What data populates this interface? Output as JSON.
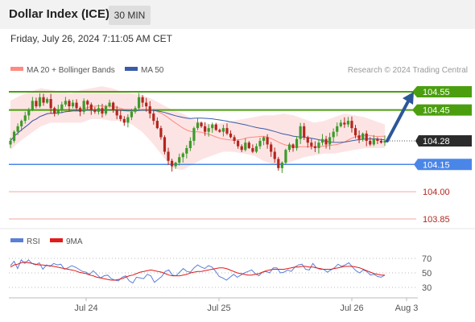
{
  "header": {
    "title": "Dollar Index (ICE)",
    "timeframe": "30 MIN",
    "timestamp": "Friday, July 26, 2024 7:11:05 AM CET"
  },
  "legend": {
    "ma20": "MA 20 + Bollinger Bands",
    "ma50": "MA 50",
    "ma20_color": "#ff8a80",
    "ma50_color": "#3a5ba8",
    "credit": "Research © 2024 Trading Central"
  },
  "colors": {
    "bull": "#3d9a2a",
    "bear": "#b3261e",
    "resistance": "#4b9f0f",
    "support": "#4a86e8",
    "target_line": "#f4a6a0",
    "target_label": "#b3261e",
    "bands_fill": "#fde4e4",
    "arrow": "#2b5797",
    "current": "#2b2b2b",
    "rsi": "#5b7fd4",
    "rsi_ma": "#e21b1b"
  },
  "chart_data": [
    {
      "type": "candlestick",
      "title": "Dollar Index (ICE)",
      "timeframe": "30 MIN",
      "ylim": [
        103.75,
        104.65
      ],
      "x_ticks": [
        "Jul 24",
        "Jul 25",
        "Jul 26",
        "Aug 3"
      ],
      "levels": [
        {
          "value": 104.55,
          "label": "104.55",
          "kind": "resistance"
        },
        {
          "value": 104.45,
          "label": "104.45",
          "kind": "resistance"
        },
        {
          "value": 104.28,
          "label": "104.28",
          "kind": "current"
        },
        {
          "value": 104.15,
          "label": "104.15",
          "kind": "support"
        },
        {
          "value": 104.0,
          "label": "104.00",
          "kind": "target"
        },
        {
          "value": 103.85,
          "label": "103.85",
          "kind": "target"
        }
      ],
      "close_series": [
        104.28,
        104.33,
        104.36,
        104.39,
        104.42,
        104.45,
        104.5,
        104.47,
        104.52,
        104.49,
        104.51,
        104.46,
        104.43,
        104.45,
        104.48,
        104.5,
        104.47,
        104.49,
        104.46,
        104.44,
        104.5,
        104.48,
        104.45,
        104.44,
        104.46,
        104.43,
        104.47,
        104.49,
        104.45,
        104.42,
        104.4,
        104.38,
        104.41,
        104.44,
        104.46,
        104.52,
        104.49,
        104.47,
        104.43,
        104.39,
        104.35,
        104.3,
        104.22,
        104.17,
        104.14,
        104.16,
        104.19,
        104.21,
        104.24,
        104.28,
        104.35,
        104.38,
        104.36,
        104.33,
        104.35,
        104.37,
        104.34,
        104.33,
        104.35,
        104.32,
        104.3,
        104.28,
        104.25,
        104.23,
        104.27,
        104.24,
        104.22,
        104.25,
        104.28,
        104.3,
        104.26,
        104.22,
        104.18,
        104.13,
        104.16,
        104.23,
        104.26,
        104.24,
        104.29,
        104.36,
        104.3,
        104.27,
        104.25,
        104.24,
        104.27,
        104.29,
        104.26,
        104.3,
        104.33,
        104.36,
        104.38,
        104.37,
        104.39,
        104.35,
        104.31,
        104.29,
        104.32,
        104.28,
        104.26,
        104.29,
        104.28,
        104.27,
        104.28
      ],
      "band_upper": [
        104.5,
        104.53,
        104.55,
        104.57,
        104.56,
        104.55,
        104.54,
        104.56,
        104.57,
        104.58,
        104.57,
        104.55,
        104.54,
        104.53,
        104.51,
        104.48,
        104.45,
        104.43,
        104.4,
        104.38,
        104.37,
        104.38,
        104.39,
        104.4,
        104.41,
        104.42,
        104.42,
        104.43,
        104.42,
        104.4,
        104.38,
        104.39,
        104.41,
        104.43,
        104.42,
        104.41,
        104.39,
        104.37
      ],
      "band_lower": [
        104.23,
        104.28,
        104.32,
        104.36,
        104.38,
        104.38,
        104.38,
        104.38,
        104.4,
        104.4,
        104.39,
        104.39,
        104.37,
        104.33,
        104.27,
        104.2,
        104.13,
        104.12,
        104.15,
        104.18,
        104.2,
        104.22,
        104.22,
        104.21,
        104.2,
        104.17,
        104.15,
        104.15,
        104.17,
        104.19,
        104.2,
        104.21,
        104.21,
        104.22,
        104.23,
        104.24,
        104.24,
        104.24
      ],
      "projection": {
        "from": 104.28,
        "to": 104.55
      }
    },
    {
      "type": "line",
      "title": "RSI",
      "series": [
        {
          "name": "RSI",
          "values": [
            60,
            66,
            56,
            68,
            63,
            68,
            63,
            61,
            64,
            55,
            61,
            59,
            63,
            61,
            62,
            55,
            57,
            60,
            58,
            55,
            52,
            51,
            48,
            53,
            48,
            43,
            46,
            47,
            42,
            40,
            39,
            44,
            46,
            39,
            36,
            44,
            43,
            42,
            48,
            46,
            37,
            41,
            45,
            52,
            54,
            47,
            46,
            51,
            56,
            52,
            51,
            57,
            61,
            58,
            56,
            60,
            58,
            52,
            45,
            43,
            40,
            44,
            48,
            44,
            47,
            50,
            52,
            54,
            49,
            46,
            51,
            52,
            50,
            57,
            57,
            50,
            51,
            54,
            52,
            58,
            61,
            62,
            55,
            54,
            63,
            57,
            55,
            55,
            51,
            54,
            57,
            62,
            59,
            61,
            64,
            58,
            53,
            50,
            54,
            52,
            47,
            48,
            45,
            44,
            47
          ]
        },
        {
          "name": "9MA",
          "values": [
            58,
            61,
            62,
            64,
            65,
            64,
            63,
            62,
            61,
            61,
            60,
            60,
            59,
            58,
            57,
            56,
            55,
            54,
            53,
            51,
            50,
            49,
            47,
            46,
            44,
            43,
            42,
            41,
            40,
            40,
            41,
            42,
            44,
            46,
            47,
            49,
            51,
            52,
            53,
            54,
            53,
            52,
            51,
            49,
            47,
            46,
            46,
            46,
            47,
            48,
            50,
            51,
            52,
            52,
            53,
            54,
            55,
            56,
            57,
            57,
            56,
            54,
            52,
            50,
            49,
            48,
            47,
            47,
            48,
            49,
            51,
            53,
            54,
            55,
            55,
            55,
            55,
            56,
            57,
            58,
            58,
            59,
            59,
            58,
            58,
            57,
            56,
            55,
            55,
            55,
            56,
            57,
            58,
            59,
            59,
            59,
            58,
            57,
            55,
            53,
            51,
            49,
            48,
            47,
            47
          ]
        }
      ],
      "ylim": [
        20,
        80
      ],
      "y_ticks": [
        70,
        50,
        30
      ]
    }
  ],
  "rsi_legend": {
    "rsi": "RSI",
    "ma": "9MA"
  }
}
